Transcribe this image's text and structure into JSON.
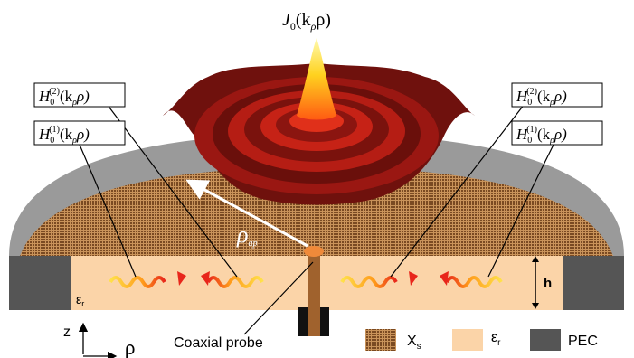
{
  "function_label": {
    "j0": "J",
    "j0_sub": "0",
    "j0_arg": "(k",
    "j0_arg_sub": "ρ",
    "j0_arg_end": "ρ)"
  },
  "hankel_labels": [
    {
      "side": "left",
      "order": "(2)",
      "text": "H",
      "sub": "0",
      "arg": "(k",
      "arg_sub": "ρ",
      "arg_end": "ρ)"
    },
    {
      "side": "left",
      "order": "(1)",
      "text": "H",
      "sub": "0",
      "arg": "(k",
      "arg_sub": "ρ",
      "arg_end": "ρ)"
    },
    {
      "side": "right",
      "order": "(2)",
      "text": "H",
      "sub": "0",
      "arg": "(k",
      "arg_sub": "ρ",
      "arg_end": "ρ)"
    },
    {
      "side": "right",
      "order": "(1)",
      "text": "H",
      "sub": "0",
      "arg": "(k",
      "arg_sub": "ρ",
      "arg_end": "ρ)"
    }
  ],
  "radius_label": {
    "symbol": "ρ",
    "sub": "ap"
  },
  "substrate_label": "ε",
  "substrate_sub": "r",
  "height_label": "h",
  "probe_label": "Coaxial probe",
  "axis": {
    "z": "z",
    "rho": "ρ"
  },
  "legend": [
    {
      "label": "X",
      "sub": "s",
      "color": "#8b5a2b"
    },
    {
      "label": "ε",
      "sub": "r",
      "color": "#fbd4a8"
    },
    {
      "label": "PEC",
      "sub": "",
      "color": "#555555"
    }
  ],
  "colors": {
    "pec_dark": "#555555",
    "pec_light": "#9a9a9a",
    "substrate": "#fbd4a8",
    "metasurface": "#8b5a2b",
    "field": "#8b1a1a",
    "probe": "#a0622d"
  }
}
